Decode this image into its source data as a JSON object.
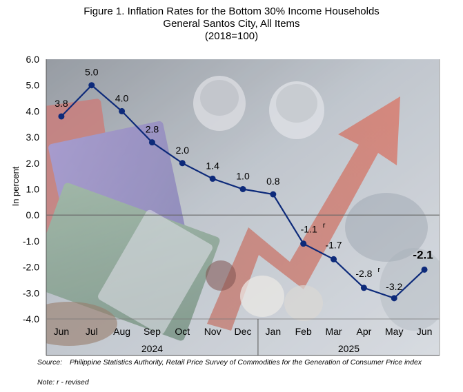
{
  "chart_data": {
    "type": "line",
    "title": "Figure 1. Inflation Rates for the Bottom 30% Income Households",
    "subtitle": "General Santos City, All Items",
    "base": "(2018=100)",
    "ylabel": "In percent",
    "xlabel": "",
    "ylim": [
      -4.0,
      6.0
    ],
    "yticks": [
      "6.0",
      "5.0",
      "4.0",
      "3.0",
      "2.0",
      "1.0",
      "0.0",
      "-1.0",
      "-2.0",
      "-3.0",
      "-4.0"
    ],
    "categories": [
      "Jun",
      "Jul",
      "Aug",
      "Sep",
      "Oct",
      "Nov",
      "Dec",
      "Jan",
      "Feb",
      "Mar",
      "Apr",
      "May",
      "Jun"
    ],
    "year_groups": [
      {
        "label": "2024",
        "start": 0,
        "end": 6
      },
      {
        "label": "2025",
        "start": 7,
        "end": 12
      }
    ],
    "series": [
      {
        "values": [
          3.8,
          5.0,
          4.0,
          2.8,
          2.0,
          1.4,
          1.0,
          0.8,
          -1.1,
          -1.7,
          -2.8,
          -3.2,
          -2.1
        ],
        "labels": [
          "3.8",
          "5.0",
          "4.0",
          "2.8",
          "2.0",
          "1.4",
          "1.0",
          "0.8",
          "-1.1",
          "-1.7",
          "-2.8",
          "-3.2",
          "-2.1"
        ],
        "revised_mark": "r",
        "revised_indices": [
          8,
          10
        ],
        "color": "#0d2a7a"
      }
    ],
    "grid": false,
    "legend": "none"
  },
  "source": {
    "label": "Source:",
    "text": "Philippine Statistics Authority, Retail Price Survey of Commodities for the Generation of Consumer Price index"
  },
  "note": "Note: r - revised"
}
